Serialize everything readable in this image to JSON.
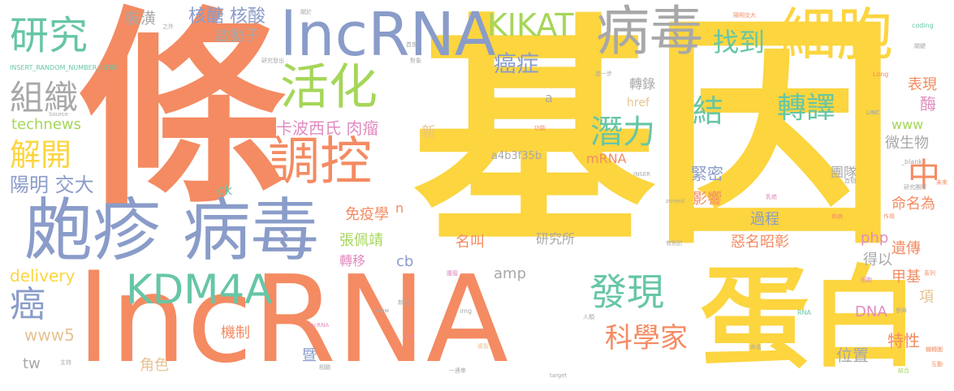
{
  "colors": {
    "orange": "#F48B62",
    "yellow": "#FCD53F",
    "blue": "#8A9CC9",
    "green": "#66C6A5",
    "lime": "#A5D659",
    "pink": "#E18CC0",
    "gold": "#E6C392",
    "gray": "#A8A8A8"
  },
  "words": {
    "jiyin": "基因",
    "tiao": "條",
    "lncrna_big": "lncRNA",
    "danbai": "蛋白",
    "lncrna_top": "lncRNA",
    "bingdu_top": "病毒",
    "xibao": "細胞",
    "paozhen_bingdu": "皰疹 病毒",
    "huohua": "活化",
    "diaokong": "調控",
    "yanjiu": "研究",
    "kikat": "KIKAT",
    "kdm4a": "KDM4A",
    "faxian": "發現",
    "zuzhi": "組織",
    "jiekai": "解開",
    "qianli": "潛力",
    "zhuanyi_tr": "轉譯",
    "jie": "結",
    "kexuejia": "科學家",
    "ai": "癌",
    "aizheng": "癌症",
    "zhaodao": "找到",
    "hetang_hesuan": "核醣 核酸",
    "zhuangzhen": "裝潢",
    "qidongzi": "啟動子",
    "yangming_jiaoda": "陽明 交大",
    "kabo_rouliu": "卡波西氏 肉瘤",
    "technews": "technews",
    "delivery": "delivery",
    "www5": "www5",
    "tw": "tw",
    "jinmi": "緊密",
    "zhong": "中",
    "www": "www",
    "weishengwu": "微生物",
    "biaoxian": "表現",
    "mei": "酶",
    "mingmingwei": "命名為",
    "tuandui": "團隊",
    "yingxiang": "影響",
    "guocheng": "過程",
    "eming": "惡名昭彰",
    "mianyixue": "免疫學",
    "zhangpeijing": "張佩靖",
    "yanjiusuo": "研究所",
    "mingjiao": "名叫",
    "zhuanyi_mv": "轉移",
    "cb": "cb",
    "amp": "amp",
    "php": "php",
    "yichuan": "遺傳",
    "deyi": "得以",
    "jiaji": "甲基",
    "jizhi": "機制",
    "dna": "DNA",
    "xiang": "項",
    "weizhi": "位置",
    "texing": "特性",
    "jiao": "角色",
    "ji": "暨",
    "xin": "新",
    "mrna": "mRNA",
    "hash": "a4b3f35b",
    "zhuanlu": "轉錄",
    "href": "href",
    "a": "a",
    "n": "n",
    "ck": "ck",
    "tiny_insert": "INSERT_RANDOM_NUMBER_HERE",
    "tiny_source": "Source",
    "tiny_coding": "coding",
    "tiny_long": "Long",
    "tiny_blank": "_blank",
    "tiny_zoneid": "zoneid",
    "tiny_target": "target",
    "tiny_lncrna": "lncRNA",
    "tiny_img": "img",
    "tiny_rna": "RNA",
    "tiny_src": "src",
    "tiny_lnc": "LINC",
    "tiny_inser": "INSER",
    "tiny_www": "www",
    "tiny_1": "關於",
    "tiny_2": "陽明交大",
    "tiny_3": "研究發出",
    "tiny_4": "對象",
    "tiny_5": "功能",
    "tiny_6": "進一步",
    "tiny_7": "未來",
    "tiny_8": "首個",
    "tiny_9": "乳癌",
    "tiny_10": "命名",
    "tiny_11": "作用",
    "tiny_12": "有別於",
    "tiny_13": "疾病",
    "tiny_14": "細胞",
    "tiny_15": "互動",
    "tiny_16": "機轉圖",
    "tiny_17": "結合",
    "tiny_18": "人類",
    "tiny_19": "複製",
    "tiny_20": "一連串",
    "tiny_21": "系列",
    "tiny_22": "新冠",
    "tiny_23": "腫瘤",
    "tiny_24": "參與",
    "tiny_25": "相關",
    "tiny_26": "主持",
    "tiny_27": "關鍵",
    "tiny_28": "研究團隊",
    "tiny_29": "首度",
    "tiny_30": "之外"
  }
}
